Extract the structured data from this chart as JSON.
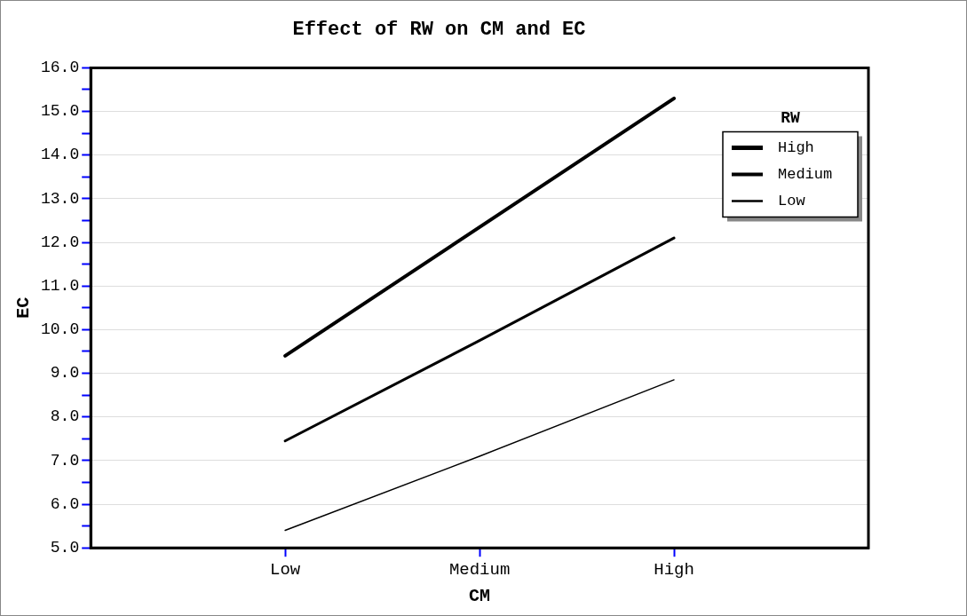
{
  "chart_data": {
    "type": "line",
    "title": "Effect of RW on CM and EC",
    "xlabel": "CM",
    "ylabel": "EC",
    "legend_title": "RW",
    "legend": "top right",
    "grid": "y",
    "marker": "none",
    "line_style": "solid",
    "categories": [
      "Low",
      "Medium",
      "High"
    ],
    "series": [
      {
        "name": "High",
        "color": "#000000",
        "values": [
          9.4,
          12.35,
          15.3
        ]
      },
      {
        "name": "Medium",
        "color": "#000000",
        "values": [
          7.45,
          9.75,
          12.1
        ]
      },
      {
        "name": "Low",
        "color": "#000000",
        "values": [
          5.4,
          7.1,
          8.85
        ]
      }
    ],
    "ylim": [
      5,
      16
    ],
    "yticks": [
      {
        "value": 5,
        "label": "5.0"
      },
      {
        "value": 5.5,
        "label": null
      },
      {
        "value": 6,
        "label": "6.0"
      },
      {
        "value": 6.5,
        "label": null
      },
      {
        "value": 7,
        "label": "7.0"
      },
      {
        "value": 7.5,
        "label": null
      },
      {
        "value": 8,
        "label": "8.0"
      },
      {
        "value": 8.5,
        "label": null
      },
      {
        "value": 9,
        "label": "9.0"
      },
      {
        "value": 9.5,
        "label": null
      },
      {
        "value": 10,
        "label": "10.0"
      },
      {
        "value": 10.5,
        "label": null
      },
      {
        "value": 11,
        "label": "11.0"
      },
      {
        "value": 11.5,
        "label": null
      },
      {
        "value": 12,
        "label": "12.0"
      },
      {
        "value": 12.5,
        "label": null
      },
      {
        "value": 13,
        "label": "13.0"
      },
      {
        "value": 13.5,
        "label": null
      },
      {
        "value": 14,
        "label": "14.0"
      },
      {
        "value": 14.5,
        "label": null
      },
      {
        "value": 15,
        "label": "15.0"
      },
      {
        "value": 15.5,
        "label": null
      },
      {
        "value": 16,
        "label": "16.0"
      }
    ]
  }
}
